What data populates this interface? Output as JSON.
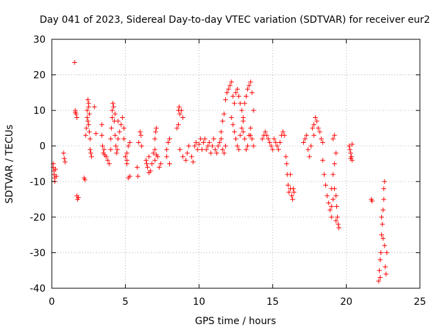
{
  "chart_data": {
    "type": "scatter",
    "title": "Day 041 of 2023, Sidereal Day-to-day VTEC variation (SDTVAR) for receiver eur2",
    "xlabel": "GPS time / hours",
    "ylabel": "SDTVAR / TECUs",
    "xlim": [
      0,
      25
    ],
    "ylim": [
      -40,
      30
    ],
    "xticks": [
      0,
      5,
      10,
      15,
      20,
      25
    ],
    "xtick_labels": [
      "0",
      "5",
      "10",
      "15",
      "20",
      "25"
    ],
    "yticks": [
      -40,
      -30,
      -20,
      -10,
      0,
      10,
      20,
      30
    ],
    "ytick_labels": [
      "-40",
      "-30",
      "-20",
      "-10",
      "0",
      "10",
      "20",
      "30"
    ],
    "grid": true,
    "legend": "none",
    "marker": "+",
    "series": [
      {
        "name": "SDTVAR eur2",
        "color": "#ff0000",
        "points": [
          [
            0.1,
            -5
          ],
          [
            0.1,
            -6
          ],
          [
            0.15,
            -7
          ],
          [
            0.15,
            -8
          ],
          [
            0.2,
            -9
          ],
          [
            0.2,
            -10
          ],
          [
            0.25,
            -6.5
          ],
          [
            0.3,
            -8.5
          ],
          [
            0.8,
            -2
          ],
          [
            0.85,
            -3.5
          ],
          [
            0.9,
            -4.5
          ],
          [
            1.55,
            23.5
          ],
          [
            1.6,
            10
          ],
          [
            1.65,
            9
          ],
          [
            1.7,
            8
          ],
          [
            1.6,
            9.5
          ],
          [
            1.7,
            -14
          ],
          [
            1.75,
            -15
          ],
          [
            1.8,
            -14.5
          ],
          [
            2.2,
            -9
          ],
          [
            2.25,
            -9.5
          ],
          [
            2.3,
            3
          ],
          [
            2.35,
            5
          ],
          [
            2.4,
            8
          ],
          [
            2.4,
            10
          ],
          [
            2.45,
            13
          ],
          [
            2.5,
            12
          ],
          [
            2.5,
            6
          ],
          [
            2.55,
            4
          ],
          [
            2.6,
            2
          ],
          [
            2.6,
            -1
          ],
          [
            2.65,
            -2
          ],
          [
            2.7,
            -3
          ],
          [
            2.5,
            11
          ],
          [
            2.45,
            7
          ],
          [
            2.55,
            9
          ],
          [
            2.9,
            11
          ],
          [
            3.0,
            3.5
          ],
          [
            3.4,
            6
          ],
          [
            3.4,
            3
          ],
          [
            3.45,
            0
          ],
          [
            3.5,
            -2
          ],
          [
            3.55,
            -1
          ],
          [
            3.6,
            -2.5
          ],
          [
            3.7,
            -3
          ],
          [
            3.8,
            -4
          ],
          [
            3.9,
            -5
          ],
          [
            4.0,
            -1
          ],
          [
            4.0,
            2
          ],
          [
            4.05,
            5
          ],
          [
            4.1,
            8
          ],
          [
            4.1,
            10
          ],
          [
            4.15,
            12
          ],
          [
            4.2,
            11
          ],
          [
            4.25,
            7
          ],
          [
            4.3,
            3
          ],
          [
            4.35,
            0
          ],
          [
            4.4,
            -2
          ],
          [
            4.45,
            -1
          ],
          [
            4.5,
            2
          ],
          [
            4.6,
            4
          ],
          [
            4.7,
            6
          ],
          [
            4.8,
            8
          ],
          [
            4.9,
            5
          ],
          [
            4.9,
            2
          ],
          [
            4.5,
            7
          ],
          [
            4.3,
            9
          ],
          [
            5.0,
            -3
          ],
          [
            5.1,
            -4
          ],
          [
            5.2,
            -9
          ],
          [
            5.3,
            -8.5
          ],
          [
            5.1,
            -2
          ],
          [
            5.2,
            0
          ],
          [
            5.3,
            1
          ],
          [
            5.1,
            -5
          ],
          [
            5.8,
            -6
          ],
          [
            5.85,
            -8.5
          ],
          [
            5.9,
            1
          ],
          [
            6.0,
            4
          ],
          [
            6.05,
            3
          ],
          [
            6.1,
            0
          ],
          [
            6.4,
            -4
          ],
          [
            6.45,
            -5
          ],
          [
            6.5,
            -6
          ],
          [
            6.6,
            -3
          ],
          [
            6.7,
            -7
          ],
          [
            6.8,
            -5
          ],
          [
            6.9,
            -2
          ],
          [
            7.0,
            -1
          ],
          [
            7.0,
            -4
          ],
          [
            7.1,
            -2.5
          ],
          [
            7.2,
            -3
          ],
          [
            7.3,
            -6
          ],
          [
            7.4,
            -5
          ],
          [
            7.0,
            2
          ],
          [
            7.05,
            4
          ],
          [
            7.1,
            5
          ],
          [
            6.6,
            -7.5
          ],
          [
            7.8,
            -1
          ],
          [
            7.9,
            1
          ],
          [
            8.0,
            2
          ],
          [
            7.8,
            -3
          ],
          [
            8.0,
            -5
          ],
          [
            8.5,
            5
          ],
          [
            8.6,
            6
          ],
          [
            8.6,
            10
          ],
          [
            8.65,
            11
          ],
          [
            8.7,
            9
          ],
          [
            8.8,
            10
          ],
          [
            8.9,
            8
          ],
          [
            8.7,
            -1
          ],
          [
            8.9,
            -3
          ],
          [
            9.1,
            -4
          ],
          [
            9.2,
            -2
          ],
          [
            9.3,
            0
          ],
          [
            9.5,
            -3
          ],
          [
            9.6,
            -4.5
          ],
          [
            9.7,
            0
          ],
          [
            9.8,
            1
          ],
          [
            9.9,
            -1
          ],
          [
            10.0,
            0.5
          ],
          [
            10.1,
            2
          ],
          [
            10.2,
            -1
          ],
          [
            10.3,
            1
          ],
          [
            10.4,
            2
          ],
          [
            10.5,
            -1
          ],
          [
            10.6,
            0
          ],
          [
            10.7,
            1
          ],
          [
            10.8,
            -2
          ],
          [
            10.9,
            0
          ],
          [
            11.0,
            2
          ],
          [
            11.1,
            -1
          ],
          [
            11.2,
            -2
          ],
          [
            11.3,
            0
          ],
          [
            11.4,
            1
          ],
          [
            11.5,
            2
          ],
          [
            11.6,
            -1
          ],
          [
            11.7,
            -2
          ],
          [
            11.8,
            0
          ],
          [
            11.5,
            4
          ],
          [
            11.6,
            7
          ],
          [
            11.7,
            9
          ],
          [
            11.8,
            13
          ],
          [
            11.9,
            15
          ],
          [
            12.0,
            16
          ],
          [
            12.1,
            17
          ],
          [
            12.2,
            18
          ],
          [
            12.3,
            14
          ],
          [
            12.4,
            12
          ],
          [
            12.5,
            15
          ],
          [
            12.6,
            16
          ],
          [
            12.7,
            14
          ],
          [
            12.8,
            12
          ],
          [
            12.9,
            10
          ],
          [
            13.0,
            8
          ],
          [
            13.1,
            12
          ],
          [
            13.2,
            14
          ],
          [
            13.3,
            16
          ],
          [
            13.4,
            17
          ],
          [
            13.5,
            18
          ],
          [
            13.6,
            15
          ],
          [
            13.7,
            10
          ],
          [
            12.3,
            6
          ],
          [
            12.4,
            4
          ],
          [
            12.5,
            2
          ],
          [
            12.6,
            0
          ],
          [
            12.7,
            -1
          ],
          [
            12.8,
            3
          ],
          [
            12.9,
            5
          ],
          [
            13.0,
            4
          ],
          [
            13.1,
            2
          ],
          [
            13.2,
            -1
          ],
          [
            13.3,
            0
          ],
          [
            13.4,
            3
          ],
          [
            13.5,
            5
          ],
          [
            13.6,
            2
          ],
          [
            13.7,
            0
          ],
          [
            12.2,
            8
          ],
          [
            13.0,
            7
          ],
          [
            13.5,
            3
          ],
          [
            14.3,
            2
          ],
          [
            14.4,
            3
          ],
          [
            14.5,
            4
          ],
          [
            14.6,
            3
          ],
          [
            14.7,
            2
          ],
          [
            14.8,
            1
          ],
          [
            14.9,
            0
          ],
          [
            15.0,
            -1
          ],
          [
            15.1,
            2
          ],
          [
            15.2,
            1
          ],
          [
            15.3,
            0
          ],
          [
            15.4,
            -1
          ],
          [
            15.5,
            1
          ],
          [
            15.6,
            3
          ],
          [
            15.7,
            4
          ],
          [
            15.8,
            3
          ],
          [
            15.9,
            -3
          ],
          [
            15.95,
            -5
          ],
          [
            16.0,
            -8
          ],
          [
            16.05,
            -11
          ],
          [
            16.1,
            -13
          ],
          [
            16.2,
            -12
          ],
          [
            16.3,
            -14
          ],
          [
            16.35,
            -15
          ],
          [
            16.4,
            -12
          ],
          [
            16.45,
            -13
          ],
          [
            16.2,
            -8
          ],
          [
            17.1,
            1
          ],
          [
            17.2,
            2
          ],
          [
            17.3,
            3
          ],
          [
            17.4,
            -1
          ],
          [
            17.5,
            -3
          ],
          [
            17.6,
            0
          ],
          [
            17.7,
            5
          ],
          [
            17.8,
            6
          ],
          [
            17.9,
            8
          ],
          [
            18.0,
            7
          ],
          [
            18.1,
            5
          ],
          [
            18.2,
            4
          ],
          [
            18.3,
            2
          ],
          [
            18.4,
            1
          ],
          [
            17.8,
            3
          ],
          [
            18.4,
            -4
          ],
          [
            18.5,
            -8
          ],
          [
            18.6,
            -11
          ],
          [
            18.7,
            -14
          ],
          [
            18.8,
            -16
          ],
          [
            18.9,
            -18
          ],
          [
            19.0,
            -17
          ],
          [
            19.1,
            -15
          ],
          [
            19.2,
            -12
          ],
          [
            19.3,
            -14
          ],
          [
            19.35,
            -17
          ],
          [
            19.4,
            -20
          ],
          [
            19.45,
            -22
          ],
          [
            19.5,
            -23
          ],
          [
            19.0,
            -12
          ],
          [
            19.1,
            -8
          ],
          [
            19.2,
            -5
          ],
          [
            19.3,
            -2
          ],
          [
            19.1,
            2
          ],
          [
            19.2,
            3
          ],
          [
            19.0,
            -20
          ],
          [
            19.3,
            -21
          ],
          [
            20.2,
            0
          ],
          [
            20.25,
            -1
          ],
          [
            20.3,
            -2
          ],
          [
            20.35,
            -3
          ],
          [
            20.4,
            -4
          ],
          [
            20.4,
            0.5
          ],
          [
            20.3,
            -3.5
          ],
          [
            21.7,
            -15
          ],
          [
            21.75,
            -15.5
          ],
          [
            22.2,
            -38
          ],
          [
            22.25,
            -35
          ],
          [
            22.3,
            -32
          ],
          [
            22.35,
            -30
          ],
          [
            22.4,
            -25
          ],
          [
            22.45,
            -22
          ],
          [
            22.5,
            -18
          ],
          [
            22.55,
            -15
          ],
          [
            22.6,
            -10
          ],
          [
            22.6,
            -28
          ],
          [
            22.65,
            -34
          ],
          [
            22.7,
            -36
          ],
          [
            22.75,
            -30
          ],
          [
            22.5,
            -26
          ],
          [
            22.4,
            -20
          ],
          [
            22.3,
            -37
          ],
          [
            22.55,
            -12
          ]
        ]
      }
    ]
  }
}
